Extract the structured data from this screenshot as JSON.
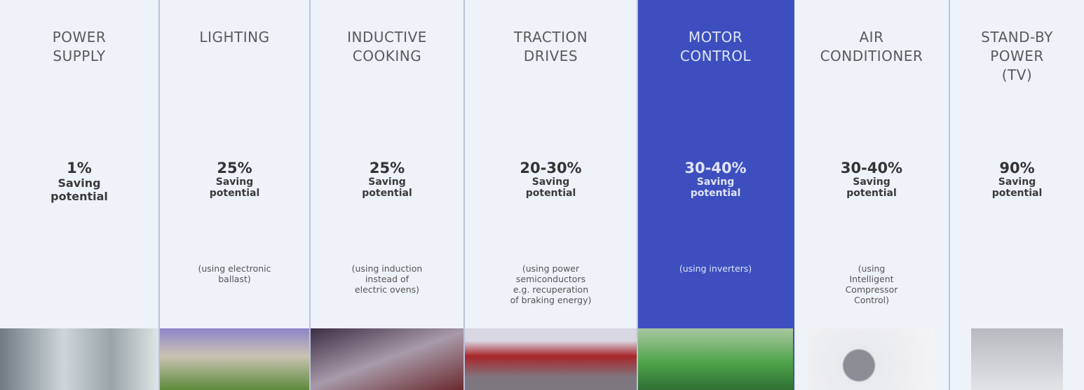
{
  "columns": [
    {
      "title_lines": [
        "POWER",
        "SUPPLY"
      ],
      "saving": "1%",
      "label_lines": [
        "Saving",
        "potential"
      ]
    },
    {
      "title_lines": [
        "LIGHTING"
      ],
      "saving": "25%",
      "label_lines": [
        "Saving",
        "potential"
      ],
      "note_lines": [
        "(using electronic",
        "ballast)"
      ]
    },
    {
      "title_lines": [
        "INDUCTIVE",
        "COOKING"
      ],
      "saving": "25%",
      "label_lines": [
        "Saving",
        "potential"
      ],
      "note_lines": [
        "(using induction",
        "instead of",
        "electric ovens)"
      ]
    },
    {
      "title_lines": [
        "TRACTION",
        "DRIVES"
      ],
      "saving": "20-30%",
      "label_lines": [
        "Saving",
        "potential"
      ],
      "note_lines": [
        "(using power",
        "semiconductors",
        "e.g. recuperation",
        "of braking energy)"
      ]
    },
    {
      "title_lines": [
        "MOTOR",
        "CONTROL"
      ],
      "saving": "30-40%",
      "label_lines": [
        "Saving",
        "potential"
      ],
      "note_lines": [
        "(using inverters)"
      ]
    },
    {
      "title_lines": [
        "AIR",
        "CONDITIONER"
      ],
      "saving": "30-40%",
      "label_lines": [
        "Saving",
        "potential"
      ],
      "note_lines": [
        "(using",
        "Intelligent",
        "Compressor",
        "Control)"
      ]
    },
    {
      "title_lines": [
        "STAND-BY",
        "POWER",
        "(TV)"
      ],
      "saving": "90%",
      "label_lines": [
        "Saving",
        "potential"
      ]
    }
  ]
}
